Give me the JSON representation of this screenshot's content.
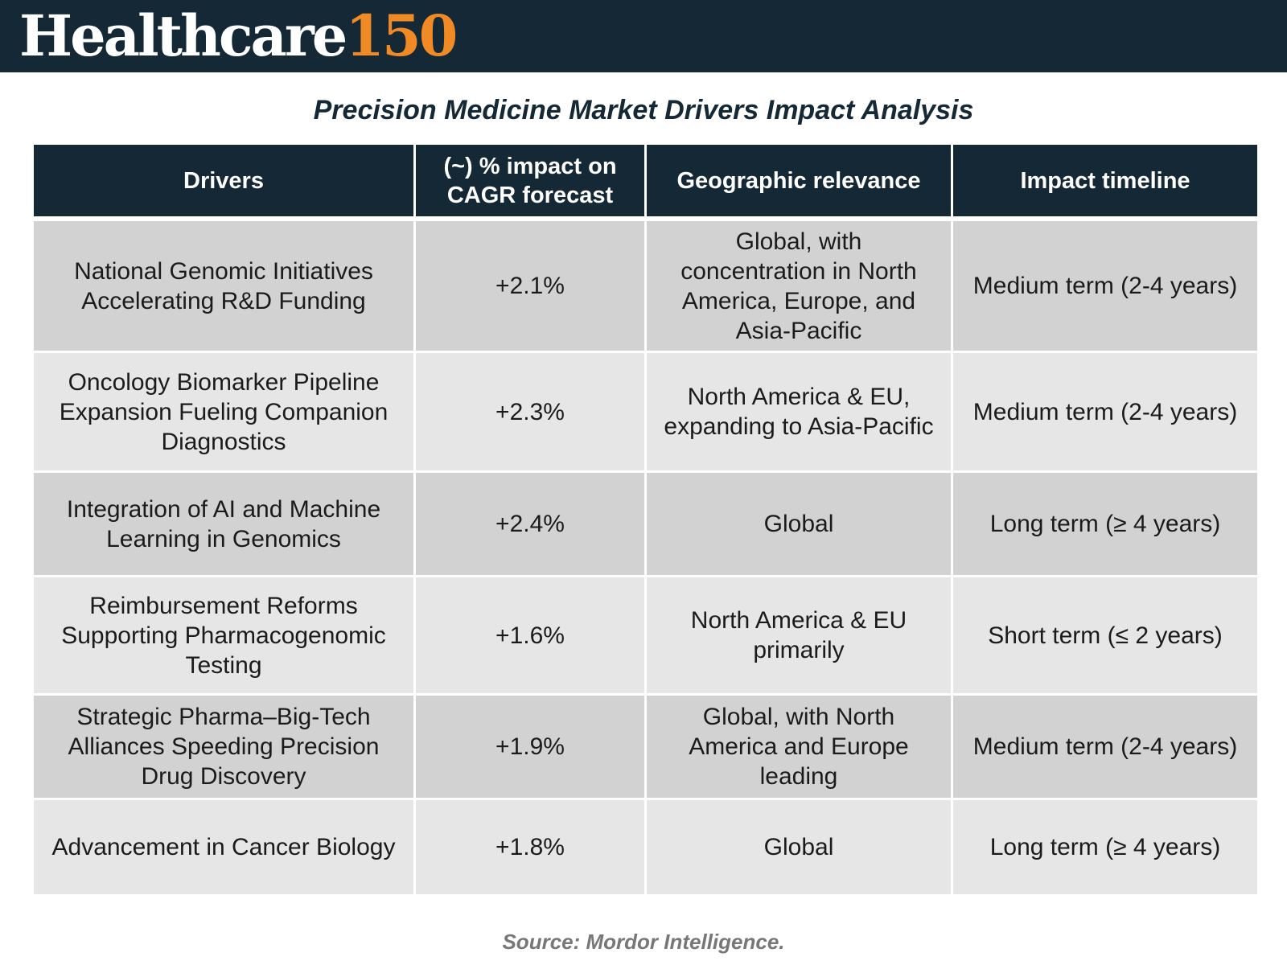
{
  "header": {
    "logo_brand": "Healthcare",
    "logo_number": "150"
  },
  "title": "Precision Medicine Market Drivers Impact Analysis",
  "table": {
    "headers": [
      "Drivers",
      "(~) % impact on CAGR forecast",
      "Geographic relevance",
      "Impact timeline"
    ],
    "rows": [
      {
        "driver": "National Genomic Initiatives Accelerating R&D Funding",
        "impact": "+2.1%",
        "geography": "Global, with concentration in North America, Europe, and Asia-Pacific",
        "timeline": "Medium term (2-4 years)"
      },
      {
        "driver": "Oncology Biomarker Pipeline Expansion Fueling Companion Diagnostics",
        "impact": "+2.3%",
        "geography": "North America & EU, expanding to Asia-Pacific",
        "timeline": "Medium term (2-4 years)"
      },
      {
        "driver": "Integration of AI and Machine Learning in Genomics",
        "impact": "+2.4%",
        "geography": "Global",
        "timeline": "Long term (≥ 4 years)"
      },
      {
        "driver": "Reimbursement Reforms Supporting Pharmacogenomic Testing",
        "impact": "+1.6%",
        "geography": "North America & EU primarily",
        "timeline": "Short term (≤ 2 years)"
      },
      {
        "driver": "Strategic Pharma–Big-Tech Alliances Speeding Precision Drug Discovery",
        "impact": "+1.9%",
        "geography": "Global, with North America and Europe leading",
        "timeline": "Medium term (2-4 years)"
      },
      {
        "driver": "Advancement in Cancer Biology",
        "impact": "+1.8%",
        "geography": "Global",
        "timeline": "Long term (≥ 4 years)"
      }
    ]
  },
  "source": "Source: Mordor Intelligence.",
  "colors": {
    "header_bg": "#142935",
    "logo_accent": "#f08a24",
    "row_dark": "#d2d2d2",
    "row_light": "#e6e6e6"
  }
}
